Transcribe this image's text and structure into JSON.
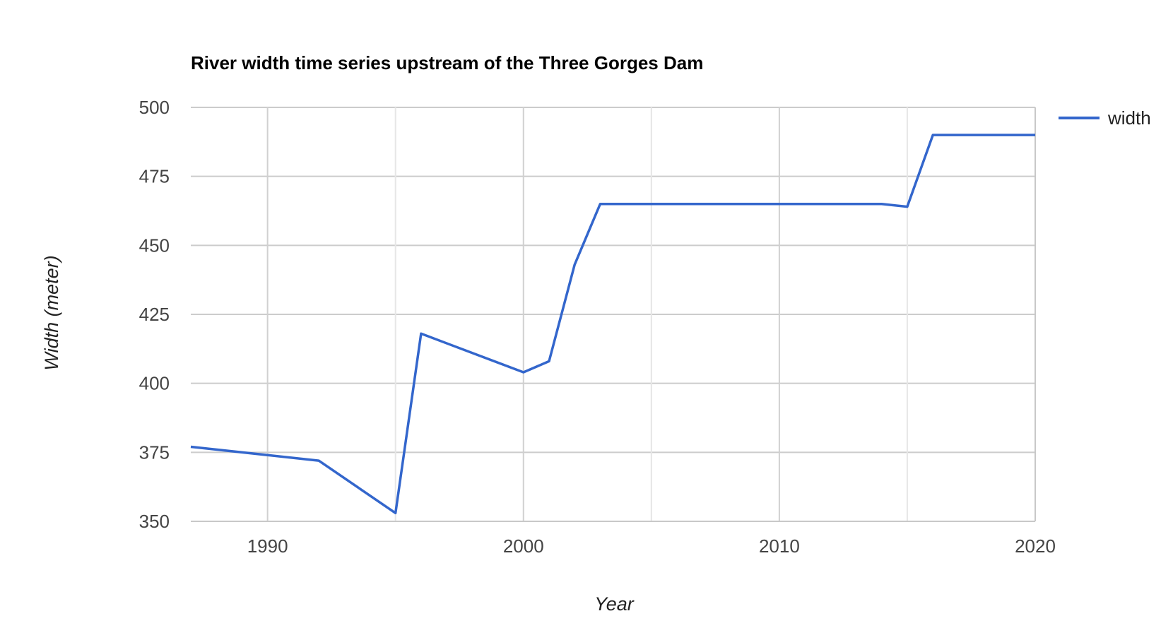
{
  "chart_data": {
    "type": "line",
    "title": "River width time series upstream of the Three Gorges Dam",
    "xlabel": "Year",
    "ylabel": "Width (meter)",
    "xlim": [
      1987,
      2020
    ],
    "ylim": [
      350,
      500
    ],
    "x_ticks": [
      1990,
      2000,
      2010,
      2020
    ],
    "x_gridlines": [
      1990,
      1995,
      2000,
      2005,
      2010,
      2015,
      2020
    ],
    "y_ticks": [
      350,
      375,
      400,
      425,
      450,
      475,
      500
    ],
    "grid": true,
    "legend_position": "right",
    "colors": {
      "series": "#3366cc",
      "grid": "#cccccc",
      "major_grid": "#d0d0d0"
    },
    "series": [
      {
        "name": "width",
        "x": [
          1987,
          1990,
          1992,
          1995,
          1996,
          2000,
          2001,
          2002,
          2003,
          2005,
          2010,
          2014,
          2015,
          2016,
          2020
        ],
        "y": [
          377,
          374,
          372,
          353,
          418,
          404,
          408,
          443,
          465,
          465,
          465,
          465,
          464,
          490,
          490
        ]
      }
    ]
  }
}
